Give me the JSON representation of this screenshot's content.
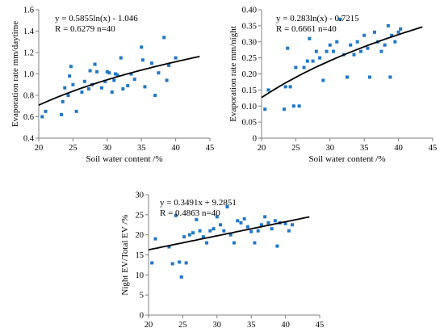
{
  "chart_data": [
    {
      "id": "panel-a",
      "type": "scatter",
      "xlabel": "Soil water content /%",
      "ylabel": "Evaporation rate mm/daytime",
      "xlim": [
        20,
        45
      ],
      "ylim": [
        0.4,
        1.6
      ],
      "xticks": [
        20,
        25,
        30,
        35,
        40,
        45
      ],
      "yticks": [
        0.4,
        0.6,
        0.8,
        1.0,
        1.2,
        1.4,
        1.6
      ],
      "ytick_decimals": 1,
      "annotations": [
        "y = 0.5855ln(x) - 1.046",
        "R  = 0.6279   n=40"
      ],
      "fit": {
        "kind": "log",
        "a": 0.5855,
        "b": -1.046,
        "x_range": [
          20,
          43.5
        ]
      },
      "point_color": "#1f77c8",
      "series": [
        {
          "points": [
            [
              20.5,
              0.6
            ],
            [
              21,
              0.65
            ],
            [
              23.3,
              0.62
            ],
            [
              23.5,
              0.74
            ],
            [
              23.8,
              0.87
            ],
            [
              24.3,
              0.8
            ],
            [
              24.5,
              0.98
            ],
            [
              24.7,
              1.07
            ],
            [
              25.0,
              0.9
            ],
            [
              25.5,
              0.65
            ],
            [
              26.3,
              0.83
            ],
            [
              26.7,
              0.93
            ],
            [
              27.3,
              0.86
            ],
            [
              27.5,
              1.03
            ],
            [
              27.8,
              0.9
            ],
            [
              28.2,
              1.09
            ],
            [
              28.5,
              1.02
            ],
            [
              29.2,
              0.87
            ],
            [
              29.7,
              0.93
            ],
            [
              30.0,
              1.02
            ],
            [
              30.3,
              1.01
            ],
            [
              30.7,
              0.83
            ],
            [
              31.0,
              0.94
            ],
            [
              31.2,
              1.0
            ],
            [
              31.5,
              0.99
            ],
            [
              32.0,
              1.15
            ],
            [
              32.3,
              0.86
            ],
            [
              33.0,
              0.89
            ],
            [
              33.5,
              1.0
            ],
            [
              34.0,
              0.95
            ],
            [
              35.0,
              1.25
            ],
            [
              35.2,
              1.13
            ],
            [
              35.5,
              0.88
            ],
            [
              36.5,
              1.1
            ],
            [
              37.0,
              0.8
            ],
            [
              37.5,
              1.01
            ],
            [
              38.3,
              1.34
            ],
            [
              38.7,
              0.94
            ],
            [
              39.0,
              1.08
            ],
            [
              40.0,
              1.15
            ]
          ]
        }
      ]
    },
    {
      "id": "panel-b",
      "type": "scatter",
      "xlabel": "Soil water content /%",
      "ylabel": "Evaporation rate mm/night",
      "xlim": [
        20,
        45
      ],
      "ylim": [
        0,
        0.4
      ],
      "xticks": [
        20,
        25,
        30,
        35,
        40,
        45
      ],
      "yticks": [
        0,
        0.05,
        0.1,
        0.15,
        0.2,
        0.25,
        0.3,
        0.35,
        0.4
      ],
      "ytick_decimals": 2,
      "annotations": [
        "y = 0.283ln(x) - 0.7215",
        "R  = 0.6661   n=40"
      ],
      "fit": {
        "kind": "log",
        "a": 0.283,
        "b": -0.7215,
        "x_range": [
          20,
          43.5
        ]
      },
      "point_color": "#1f77c8",
      "series": [
        {
          "points": [
            [
              20.5,
              0.09
            ],
            [
              21.0,
              0.15
            ],
            [
              23.3,
              0.09
            ],
            [
              23.5,
              0.16
            ],
            [
              23.8,
              0.28
            ],
            [
              24.2,
              0.16
            ],
            [
              24.7,
              0.1
            ],
            [
              25.0,
              0.22
            ],
            [
              25.5,
              0.1
            ],
            [
              26.2,
              0.22
            ],
            [
              26.7,
              0.24
            ],
            [
              27.0,
              0.31
            ],
            [
              27.5,
              0.24
            ],
            [
              28.0,
              0.27
            ],
            [
              28.5,
              0.25
            ],
            [
              29.0,
              0.18
            ],
            [
              29.5,
              0.27
            ],
            [
              30.0,
              0.29
            ],
            [
              30.5,
              0.27
            ],
            [
              31.0,
              0.3
            ],
            [
              31.5,
              0.37
            ],
            [
              32.0,
              0.26
            ],
            [
              32.5,
              0.19
            ],
            [
              33.0,
              0.29
            ],
            [
              33.5,
              0.26
            ],
            [
              34.0,
              0.3
            ],
            [
              34.5,
              0.27
            ],
            [
              35.0,
              0.32
            ],
            [
              35.5,
              0.28
            ],
            [
              35.8,
              0.19
            ],
            [
              36.5,
              0.33
            ],
            [
              37.0,
              0.3
            ],
            [
              37.5,
              0.27
            ],
            [
              38.0,
              0.29
            ],
            [
              38.5,
              0.35
            ],
            [
              38.8,
              0.19
            ],
            [
              39.0,
              0.32
            ],
            [
              39.5,
              0.3
            ],
            [
              40.0,
              0.33
            ],
            [
              40.3,
              0.34
            ]
          ]
        }
      ]
    },
    {
      "id": "panel-c",
      "type": "scatter",
      "xlabel": "Soil water content /%",
      "ylabel": "Night EV/Total EV  /%",
      "xlim": [
        20,
        45
      ],
      "ylim": [
        0,
        30
      ],
      "xticks": [
        20,
        25,
        30,
        35,
        40,
        45
      ],
      "yticks": [
        0,
        5,
        10,
        15,
        20,
        25,
        30
      ],
      "ytick_decimals": 0,
      "annotations": [
        "y = 0.3491x + 9.2851",
        "R  = 0.4863   n=40"
      ],
      "fit": {
        "kind": "linear",
        "a": 0.3491,
        "b": 9.2851,
        "x_range": [
          20,
          43.5
        ]
      },
      "point_color": "#1f77c8",
      "series": [
        {
          "points": [
            [
              20.5,
              13.0
            ],
            [
              21.0,
              19.0
            ],
            [
              23.0,
              17.0
            ],
            [
              23.5,
              12.8
            ],
            [
              24.0,
              24.8
            ],
            [
              24.5,
              13.2
            ],
            [
              24.8,
              9.5
            ],
            [
              25.2,
              19.5
            ],
            [
              25.5,
              13.0
            ],
            [
              26.0,
              20.0
            ],
            [
              26.5,
              20.5
            ],
            [
              27.0,
              23.8
            ],
            [
              27.5,
              21.0
            ],
            [
              28.0,
              19.5
            ],
            [
              28.5,
              18.0
            ],
            [
              29.0,
              21.0
            ],
            [
              29.5,
              21.5
            ],
            [
              30.0,
              24.5
            ],
            [
              30.5,
              22.5
            ],
            [
              31.0,
              21.0
            ],
            [
              31.5,
              27.0
            ],
            [
              32.0,
              20.0
            ],
            [
              32.5,
              18.0
            ],
            [
              33.0,
              23.5
            ],
            [
              33.5,
              23.0
            ],
            [
              34.0,
              24.0
            ],
            [
              34.5,
              22.0
            ],
            [
              35.0,
              20.8
            ],
            [
              35.5,
              18.0
            ],
            [
              36.0,
              21.0
            ],
            [
              36.5,
              22.5
            ],
            [
              37.0,
              24.5
            ],
            [
              37.5,
              23.0
            ],
            [
              38.0,
              21.5
            ],
            [
              38.5,
              23.5
            ],
            [
              38.8,
              17.2
            ],
            [
              39.2,
              23.0
            ],
            [
              40.0,
              22.8
            ],
            [
              40.5,
              21.0
            ],
            [
              41.0,
              22.5
            ]
          ]
        }
      ]
    }
  ]
}
